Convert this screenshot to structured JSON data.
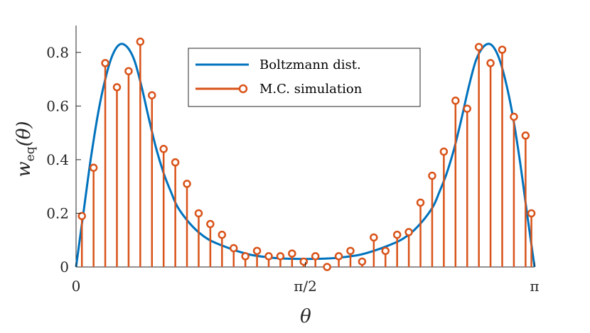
{
  "chart_data": {
    "type": "line+stem",
    "title": "",
    "xlabel": "θ",
    "ylabel_main": "w",
    "ylabel_sub": "eq",
    "ylabel_arg": "(θ)",
    "xlim": [
      0,
      3.14159
    ],
    "ylim": [
      0,
      0.9
    ],
    "x_ticks": [
      {
        "value": 0,
        "label": "0"
      },
      {
        "value": 1.5708,
        "label": "π/2"
      },
      {
        "value": 3.14159,
        "label": "π"
      }
    ],
    "y_ticks": [
      {
        "value": 0,
        "label": "0"
      },
      {
        "value": 0.2,
        "label": "0.2"
      },
      {
        "value": 0.4,
        "label": "0.4"
      },
      {
        "value": 0.6,
        "label": "0.6"
      },
      {
        "value": 0.8,
        "label": "0.8"
      }
    ],
    "legend": {
      "placement": "top-center",
      "entries": [
        {
          "label": "Boltzmann dist.",
          "kind": "line"
        },
        {
          "label": "M.C. simulation",
          "kind": "stem"
        }
      ]
    },
    "series": [
      {
        "name": "Boltzmann dist.",
        "kind": "line",
        "color": "#0072BD",
        "x": [
          0,
          0.05,
          0.1,
          0.15,
          0.2,
          0.25,
          0.3,
          0.35,
          0.4,
          0.45,
          0.5,
          0.55,
          0.6,
          0.65,
          0.7,
          0.8,
          0.9,
          1.0,
          1.1,
          1.2,
          1.3,
          1.4,
          1.5708,
          1.74,
          1.84,
          1.94,
          2.04,
          2.14,
          2.24,
          2.34,
          2.44,
          2.49,
          2.54,
          2.59,
          2.64,
          2.69,
          2.74,
          2.79,
          2.84,
          2.89,
          2.94,
          2.99,
          3.04,
          3.09,
          3.14159
        ],
        "values": [
          0,
          0.2,
          0.4,
          0.57,
          0.7,
          0.79,
          0.83,
          0.82,
          0.77,
          0.67,
          0.55,
          0.44,
          0.35,
          0.28,
          0.22,
          0.15,
          0.105,
          0.08,
          0.06,
          0.045,
          0.037,
          0.032,
          0.03,
          0.032,
          0.037,
          0.045,
          0.06,
          0.08,
          0.105,
          0.15,
          0.22,
          0.28,
          0.35,
          0.44,
          0.55,
          0.67,
          0.77,
          0.82,
          0.83,
          0.79,
          0.7,
          0.57,
          0.4,
          0.2,
          0
        ]
      },
      {
        "name": "M.C. simulation",
        "kind": "stem",
        "color": "#D95319",
        "x": [
          0.04,
          0.12,
          0.2,
          0.28,
          0.36,
          0.44,
          0.52,
          0.6,
          0.68,
          0.76,
          0.84,
          0.92,
          1.0,
          1.08,
          1.16,
          1.24,
          1.32,
          1.4,
          1.48,
          1.56,
          1.64,
          1.72,
          1.8,
          1.88,
          1.96,
          2.04,
          2.12,
          2.2,
          2.28,
          2.36,
          2.44,
          2.52,
          2.6,
          2.68,
          2.76,
          2.84,
          2.92,
          3.0,
          3.08,
          3.12
        ],
        "values": [
          0.19,
          0.37,
          0.76,
          0.67,
          0.73,
          0.84,
          0.64,
          0.44,
          0.39,
          0.31,
          0.2,
          0.16,
          0.12,
          0.07,
          0.04,
          0.06,
          0.04,
          0.04,
          0.05,
          0.02,
          0.04,
          0.0,
          0.04,
          0.06,
          0.02,
          0.11,
          0.06,
          0.12,
          0.13,
          0.24,
          0.34,
          0.43,
          0.62,
          0.59,
          0.82,
          0.76,
          0.81,
          0.56,
          0.49,
          0.2
        ]
      }
    ]
  }
}
